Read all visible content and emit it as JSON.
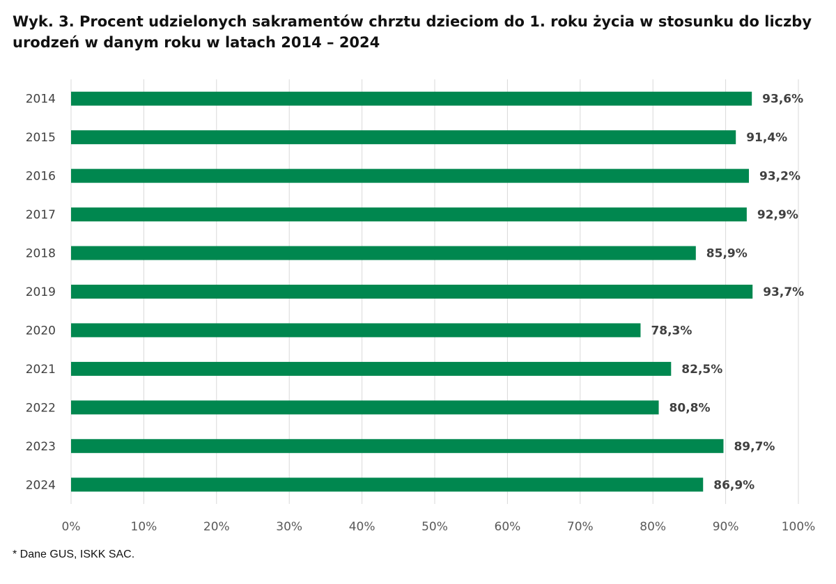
{
  "chart_data": {
    "type": "bar",
    "orientation": "horizontal",
    "title": "Wyk. 3. Procent udzielonych sakramentów chrztu dzieciom do 1. roku życia w stosunku do liczby urodzeń w danym roku w latach 2014 – 2024",
    "categories": [
      "2014",
      "2015",
      "2016",
      "2017",
      "2018",
      "2019",
      "2020",
      "2021",
      "2022",
      "2023",
      "2024"
    ],
    "values": [
      93.6,
      91.4,
      93.2,
      92.9,
      85.9,
      93.7,
      78.3,
      82.5,
      80.8,
      89.7,
      86.9
    ],
    "data_labels": [
      "93,6%",
      "91,4%",
      "93,2%",
      "92,9%",
      "85,9%",
      "93,7%",
      "78,3%",
      "82,5%",
      "80,8%",
      "89,7%",
      "86,9%"
    ],
    "xlim": [
      0,
      100
    ],
    "xticks": [
      0,
      10,
      20,
      30,
      40,
      50,
      60,
      70,
      80,
      90,
      100
    ],
    "xtick_labels": [
      "0%",
      "10%",
      "20%",
      "30%",
      "40%",
      "50%",
      "60%",
      "70%",
      "80%",
      "90%",
      "100%"
    ],
    "xlabel": "",
    "ylabel": "",
    "grid": true,
    "legend": "none",
    "bar_color": "#00874F",
    "grid_color": "#D9D9D9"
  },
  "footnote": "* Dane GUS, ISKK SAC."
}
